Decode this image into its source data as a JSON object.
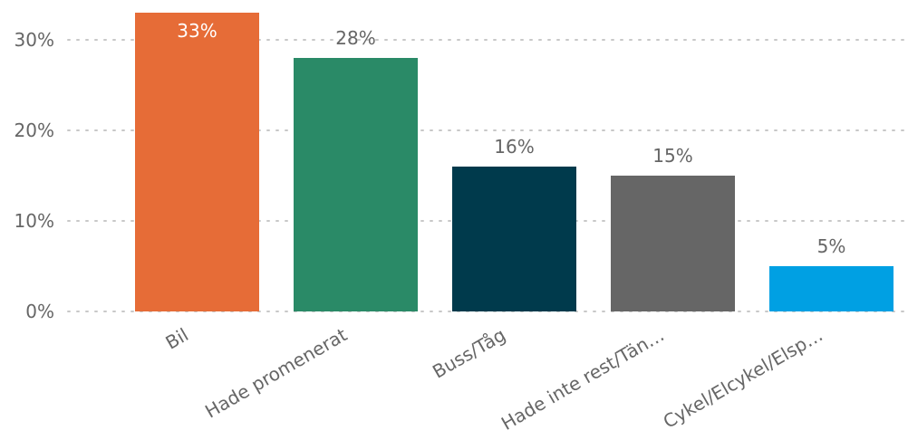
{
  "chart_data": {
    "type": "bar",
    "title": "",
    "xlabel": "",
    "ylabel": "",
    "categories": [
      "Bil",
      "Hade promenerat",
      "Buss/Tåg",
      "Hade inte rest/Tän…",
      "Cykel/Elcykel/Elsp…"
    ],
    "values": [
      33,
      28,
      16,
      15,
      5
    ],
    "data_labels": [
      "33%",
      "28%",
      "16%",
      "15%",
      "5%"
    ],
    "colors": [
      "#E66C37",
      "#2A8A67",
      "#003A4C",
      "#666666",
      "#00A0E3"
    ],
    "label_colors": [
      "#ffffff",
      "#666666",
      "#666666",
      "#666666",
      "#666666"
    ],
    "label_inside": [
      true,
      false,
      false,
      false,
      false
    ],
    "ylim": [
      0,
      33.5
    ],
    "y_ticks": [
      0,
      10,
      20,
      30
    ],
    "y_tick_labels": [
      "0%",
      "10%",
      "20%",
      "30%"
    ],
    "grid": true,
    "legend": "none"
  }
}
